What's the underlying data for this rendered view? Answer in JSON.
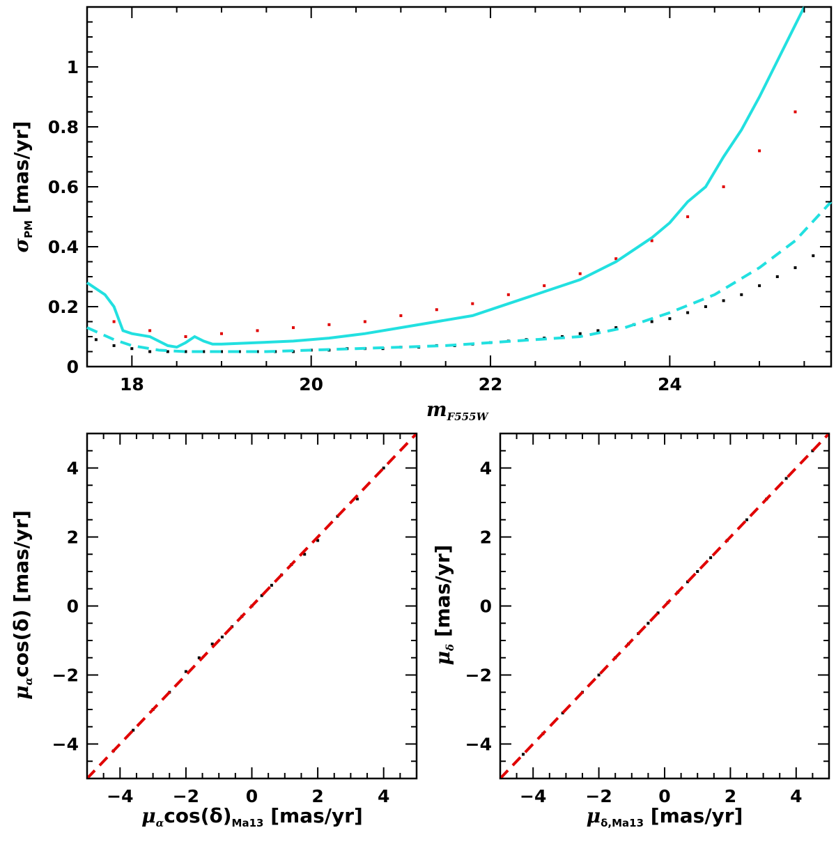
{
  "chart_data": [
    {
      "type": "scatter",
      "panel": "top",
      "xlim": [
        17.5,
        25.8
      ],
      "ylim": [
        0,
        1.2
      ],
      "xticks": [
        18,
        20,
        22,
        24
      ],
      "yticks": [
        0,
        0.2,
        0.4,
        0.6,
        0.8,
        1
      ],
      "xtick_labels": [
        "18",
        "20",
        "22",
        "24"
      ],
      "ytick_labels": [
        "0",
        "0.2",
        "0.4",
        "0.6",
        "0.8",
        "1"
      ],
      "xlabel": {
        "main": "m",
        "sub": "F555W"
      },
      "ylabel": {
        "main": "σ",
        "sub": "PM",
        "unit": " [mas/yr]"
      },
      "grid": false,
      "series": [
        {
          "name": "black points (lower envelope)",
          "color": "#000000",
          "x": [
            17.6,
            17.8,
            18.0,
            18.2,
            18.4,
            18.6,
            18.8,
            19.0,
            19.2,
            19.4,
            19.6,
            19.8,
            20.0,
            20.2,
            20.4,
            20.6,
            20.8,
            21.0,
            21.2,
            21.4,
            21.6,
            21.8,
            22.0,
            22.2,
            22.4,
            22.6,
            22.8,
            23.0,
            23.2,
            23.4,
            23.6,
            23.8,
            24.0,
            24.2,
            24.4,
            24.6,
            24.8,
            25.0,
            25.2,
            25.4,
            25.6
          ],
          "y": [
            0.09,
            0.07,
            0.06,
            0.05,
            0.05,
            0.05,
            0.05,
            0.05,
            0.05,
            0.05,
            0.05,
            0.05,
            0.055,
            0.055,
            0.06,
            0.06,
            0.06,
            0.065,
            0.065,
            0.07,
            0.07,
            0.075,
            0.08,
            0.085,
            0.09,
            0.095,
            0.1,
            0.11,
            0.12,
            0.13,
            0.14,
            0.15,
            0.16,
            0.18,
            0.2,
            0.22,
            0.24,
            0.27,
            0.3,
            0.33,
            0.37
          ]
        },
        {
          "name": "red points (upper spread)",
          "color": "#e00000",
          "x": [
            17.8,
            18.2,
            18.6,
            19.0,
            19.4,
            19.8,
            20.2,
            20.6,
            21.0,
            21.4,
            21.8,
            22.2,
            22.6,
            23.0,
            23.4,
            23.8,
            24.2,
            24.6,
            25.0,
            25.4
          ],
          "y": [
            0.15,
            0.12,
            0.1,
            0.11,
            0.12,
            0.13,
            0.14,
            0.15,
            0.17,
            0.19,
            0.21,
            0.24,
            0.27,
            0.31,
            0.36,
            0.42,
            0.5,
            0.6,
            0.72,
            0.85
          ]
        },
        {
          "name": "solid cyan curve",
          "color": "#22e0e0",
          "style": "solid",
          "x": [
            17.5,
            17.7,
            17.8,
            17.9,
            18.0,
            18.2,
            18.4,
            18.5,
            18.6,
            18.7,
            18.8,
            18.9,
            19.0,
            19.4,
            19.8,
            20.2,
            20.6,
            21.0,
            21.4,
            21.8,
            22.2,
            22.6,
            23.0,
            23.4,
            23.8,
            24.0,
            24.2,
            24.4,
            24.6,
            24.8,
            25.0,
            25.2,
            25.4,
            25.5
          ],
          "y": [
            0.28,
            0.24,
            0.2,
            0.12,
            0.11,
            0.1,
            0.07,
            0.065,
            0.08,
            0.1,
            0.085,
            0.075,
            0.075,
            0.08,
            0.085,
            0.095,
            0.11,
            0.13,
            0.15,
            0.17,
            0.21,
            0.25,
            0.29,
            0.35,
            0.43,
            0.48,
            0.55,
            0.6,
            0.7,
            0.79,
            0.9,
            1.02,
            1.14,
            1.2
          ]
        },
        {
          "name": "dashed cyan curve",
          "color": "#22e0e0",
          "style": "dashed",
          "x": [
            17.5,
            17.8,
            18.0,
            18.3,
            18.6,
            19.0,
            19.5,
            20.0,
            20.5,
            21.0,
            21.5,
            22.0,
            22.5,
            23.0,
            23.5,
            24.0,
            24.5,
            25.0,
            25.4,
            25.8
          ],
          "y": [
            0.13,
            0.09,
            0.07,
            0.055,
            0.05,
            0.05,
            0.05,
            0.055,
            0.06,
            0.065,
            0.07,
            0.08,
            0.09,
            0.1,
            0.13,
            0.18,
            0.24,
            0.33,
            0.42,
            0.55
          ]
        }
      ]
    },
    {
      "type": "scatter",
      "panel": "bottom-left",
      "xlim": [
        -5,
        5
      ],
      "ylim": [
        -5,
        5
      ],
      "xticks": [
        -4,
        -2,
        0,
        2,
        4
      ],
      "yticks": [
        -4,
        -2,
        0,
        2,
        4
      ],
      "xtick_labels": [
        "−4",
        "−2",
        "0",
        "2",
        "4"
      ],
      "ytick_labels": [
        "−4",
        "−2",
        "0",
        "2",
        "4"
      ],
      "xlabel": {
        "main": "μ",
        "sub1": "α",
        "mid": "cos(δ)",
        "sub": "Ma13",
        "unit": " [mas/yr]"
      },
      "ylabel": {
        "main": "μ",
        "sub": "α",
        "mid": "cos(δ)",
        "unit": " [mas/yr]"
      },
      "grid": false,
      "series": [
        {
          "name": "black points",
          "color": "#000000",
          "x": [
            -4.2,
            -3.6,
            -3.0,
            -2.5,
            -2.0,
            -1.6,
            -1.2,
            -0.9,
            -0.6,
            -0.3,
            0.0,
            0.3,
            0.6,
            0.9,
            1.2,
            1.6,
            2.0,
            2.6,
            3.2,
            4.0
          ],
          "y": [
            -4.2,
            -3.6,
            -3.0,
            -2.5,
            -1.9,
            -1.5,
            -1.1,
            -0.9,
            -0.6,
            -0.3,
            0.0,
            0.3,
            0.6,
            0.9,
            1.2,
            1.5,
            1.9,
            2.6,
            3.1,
            4.0
          ]
        },
        {
          "name": "one-to-one line",
          "color": "#e00000",
          "style": "dashed",
          "x": [
            -5,
            5
          ],
          "y": [
            -5,
            5
          ]
        }
      ]
    },
    {
      "type": "scatter",
      "panel": "bottom-right",
      "xlim": [
        -5,
        5
      ],
      "ylim": [
        -5,
        5
      ],
      "xticks": [
        -4,
        -2,
        0,
        2,
        4
      ],
      "yticks": [
        -4,
        -2,
        0,
        2,
        4
      ],
      "xtick_labels": [
        "−4",
        "−2",
        "0",
        "2",
        "4"
      ],
      "ytick_labels": [
        "−4",
        "−2",
        "0",
        "2",
        "4"
      ],
      "xlabel": {
        "main": "μ",
        "sub": "δ,Ma13",
        "unit": " [mas/yr]"
      },
      "ylabel": {
        "main": "μ",
        "sub": "δ",
        "unit": " [mas/yr]"
      },
      "grid": false,
      "series": [
        {
          "name": "black points",
          "color": "#000000",
          "x": [
            -4.3,
            -3.7,
            -3.1,
            -2.5,
            -2.0,
            -1.5,
            -1.1,
            -0.8,
            -0.5,
            -0.2,
            0.1,
            0.4,
            0.7,
            1.0,
            1.4,
            1.9,
            2.5,
            3.1,
            3.7,
            4.5
          ],
          "y": [
            -4.3,
            -3.7,
            -3.1,
            -2.5,
            -2.0,
            -1.5,
            -1.1,
            -0.8,
            -0.5,
            -0.2,
            0.1,
            0.4,
            0.7,
            1.0,
            1.4,
            1.9,
            2.5,
            3.1,
            3.7,
            4.5
          ]
        },
        {
          "name": "one-to-one line",
          "color": "#e00000",
          "style": "dashed",
          "x": [
            -5,
            5
          ],
          "y": [
            -5,
            5
          ]
        }
      ]
    }
  ]
}
